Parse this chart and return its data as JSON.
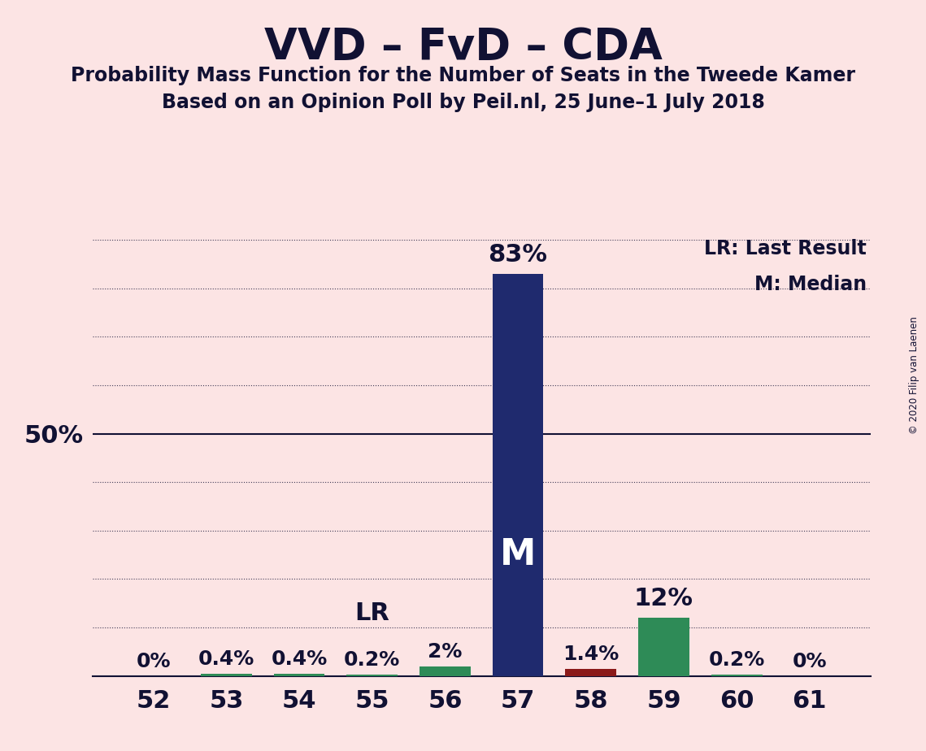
{
  "title": "VVD – FvD – CDA",
  "subtitle1": "Probability Mass Function for the Number of Seats in the Tweede Kamer",
  "subtitle2": "Based on an Opinion Poll by Peil.nl, 25 June–1 July 2018",
  "copyright": "© 2020 Filip van Laenen",
  "seats": [
    52,
    53,
    54,
    55,
    56,
    57,
    58,
    59,
    60,
    61
  ],
  "probabilities": [
    0.0,
    0.4,
    0.4,
    0.2,
    2.0,
    83.0,
    1.4,
    12.0,
    0.2,
    0.0
  ],
  "bar_colors": [
    "#2e8b57",
    "#2e8b57",
    "#2e8b57",
    "#2e8b57",
    "#2e8b57",
    "#1f2a6e",
    "#8b1a1a",
    "#2e8b57",
    "#2e8b57",
    "#2e8b57"
  ],
  "prob_labels": [
    "0%",
    "0.4%",
    "0.4%",
    "0.2%",
    "2%",
    "83%",
    "1.4%",
    "12%",
    "0.2%",
    "0%"
  ],
  "median_seat": 57,
  "lr_seat": 55,
  "background_color": "#fce4e4",
  "bar_width": 0.7,
  "ylim": [
    0,
    93
  ],
  "ytick_val": 50,
  "ytick_label": "50%",
  "dotted_yticks": [
    10,
    20,
    30,
    40,
    60,
    70,
    80,
    90
  ],
  "solid_ytick": 50,
  "grid_color": "#111133",
  "text_color": "#111133",
  "median_label_color": "#ffffff",
  "legend_lr": "LR: Last Result",
  "legend_m": "M: Median",
  "median_label": "M",
  "lr_label": "LR"
}
